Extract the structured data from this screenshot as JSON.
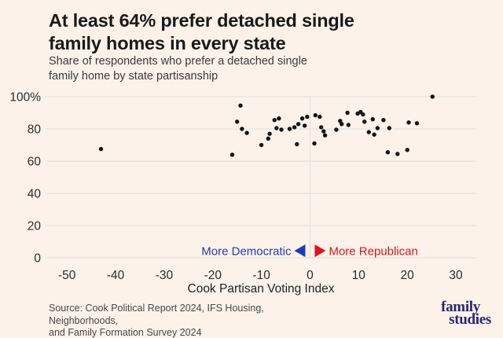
{
  "header": {
    "title_lines": [
      "At least 64% prefer detached single",
      "family homes in every state"
    ],
    "subtitle_lines": [
      "Share of respondents who prefer a detached single",
      "family home by state partisanship"
    ]
  },
  "chart_data": {
    "type": "scatter",
    "title": "At least 64% prefer detached single family homes in every state",
    "subtitle": "Share of respondents who prefer a detached single family home by state partisanship",
    "xlabel": "Cook Partisan Voting Index",
    "ylabel": "",
    "xlim": [
      -54.4,
      34.2
    ],
    "ylim": [
      0,
      100
    ],
    "x_ticks": [
      -50,
      -40,
      -30,
      -20,
      -10,
      0,
      10,
      20,
      30
    ],
    "y_ticks": [
      0,
      20,
      40,
      60,
      80,
      100
    ],
    "y_tick_labels": [
      "0",
      "20",
      "40",
      "60",
      "80",
      "100%"
    ],
    "grid": "horizontal gridlines at each y tick plus vertical line at x=0",
    "legend_position": "none",
    "point_color": "#141414",
    "annotations": {
      "democratic_label": "More Democratic",
      "democratic_color": "#1e3bbf",
      "republican_label": "More Republican",
      "republican_color": "#e0131f"
    },
    "points": [
      [
        -43,
        67.5
      ],
      [
        -16,
        64
      ],
      [
        -15,
        84.5
      ],
      [
        -14.3,
        94.5
      ],
      [
        -14,
        80
      ],
      [
        -13,
        77.5
      ],
      [
        -10,
        70
      ],
      [
        -8.6,
        74
      ],
      [
        -8.3,
        77
      ],
      [
        -7.3,
        85.5
      ],
      [
        -6.9,
        80.5
      ],
      [
        -6.4,
        86.5
      ],
      [
        -5.9,
        79.5
      ],
      [
        -4.2,
        80
      ],
      [
        -3.2,
        81
      ],
      [
        -2.7,
        70.5
      ],
      [
        -2.4,
        83
      ],
      [
        -1.6,
        86.5
      ],
      [
        -1.1,
        82
      ],
      [
        -0.6,
        87.5
      ],
      [
        0.9,
        71
      ],
      [
        1.1,
        88.5
      ],
      [
        2,
        87.5
      ],
      [
        2.3,
        81
      ],
      [
        2.8,
        78.5
      ],
      [
        3.1,
        76
      ],
      [
        5.4,
        79.5
      ],
      [
        6.2,
        85
      ],
      [
        6.5,
        83
      ],
      [
        7.7,
        90
      ],
      [
        7.9,
        82.5
      ],
      [
        9.8,
        89.5
      ],
      [
        10.4,
        90.5
      ],
      [
        10.9,
        89
      ],
      [
        11.2,
        84.5
      ],
      [
        12.1,
        78
      ],
      [
        12.9,
        86
      ],
      [
        13.2,
        76.5
      ],
      [
        13.9,
        80.5
      ],
      [
        15.1,
        85.5
      ],
      [
        16,
        65.5
      ],
      [
        16.3,
        80.5
      ],
      [
        18,
        64.5
      ],
      [
        20,
        67
      ],
      [
        20.3,
        84
      ],
      [
        22,
        83.5
      ],
      [
        25.2,
        100
      ]
    ]
  },
  "footer": {
    "source_lines": [
      "Source: Cook Political Report 2024, IFS Housing, Neighborhoods,",
      "and Family Formation Survey 2024"
    ],
    "logo_lines": [
      "family",
      "studies"
    ],
    "logo_color": "#2b2773"
  },
  "colors": {
    "background": "#fcf2e9",
    "gridline": "#e6e1e0",
    "tick_text": "#2b2b2b",
    "title_text": "#191919"
  }
}
